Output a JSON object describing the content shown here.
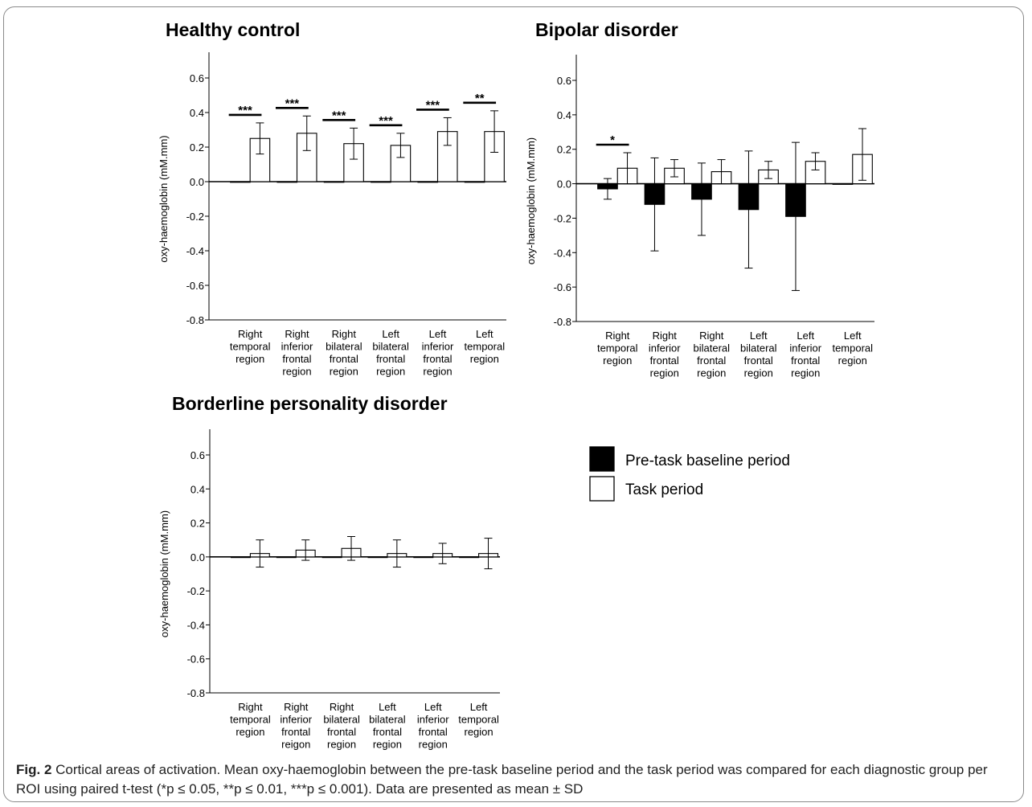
{
  "legend": {
    "entries": [
      {
        "label": "Pre-task baseline period",
        "color": "#000000"
      },
      {
        "label": "Task period",
        "color": "#ffffff"
      }
    ]
  },
  "caption": {
    "label": "Fig. 2",
    "text": "Cortical areas of activation. Mean oxy-haemoglobin between the pre-task baseline period and the task period was compared for each diagnostic group per ROI using paired t-test (*p ≤ 0.05, **p ≤ 0.01, ***p ≤ 0.001). Data are presented as mean ± SD"
  },
  "chart_data": [
    {
      "type": "bar",
      "title": "Healthy control",
      "ylabel": "oxy-haemoglobin (mM.mm)",
      "ylim": [
        -0.8,
        0.7
      ],
      "yticks": [
        "0.6",
        "0.4",
        "0.2",
        "0.0",
        "-0.2",
        "-0.4",
        "-0.6",
        "-0.8"
      ],
      "categories": [
        [
          "Right",
          "temporal",
          "region"
        ],
        [
          "Right",
          "inferior",
          "frontal",
          "region"
        ],
        [
          "Right",
          "bilateral",
          "frontal",
          "region"
        ],
        [
          "Left",
          "bilateral",
          "frontal",
          "region"
        ],
        [
          "Left",
          "inferior",
          "frontal",
          "region"
        ],
        [
          "Left",
          "temporal",
          "region"
        ]
      ],
      "series": [
        {
          "name": "Pre-task baseline period",
          "values": [
            0.0,
            0.0,
            0.0,
            0.0,
            0.0,
            0.0
          ],
          "sd": [
            0,
            0,
            0,
            0,
            0,
            0
          ]
        },
        {
          "name": "Task period",
          "values": [
            0.25,
            0.28,
            0.22,
            0.21,
            0.29,
            0.29
          ],
          "sd": [
            0.09,
            0.1,
            0.09,
            0.07,
            0.08,
            0.12
          ]
        }
      ],
      "significance": [
        "***",
        "***",
        "***",
        "***",
        "***",
        "**"
      ]
    },
    {
      "type": "bar",
      "title": "Bipolar disorder",
      "ylabel": "oxy-haemoglobin (mM.mm)",
      "ylim": [
        -0.8,
        0.7
      ],
      "yticks": [
        "0.6",
        "0.4",
        "0.2",
        "0.0",
        "-0.2",
        "-0.4",
        "-0.6",
        "-0.8"
      ],
      "categories": [
        [
          "Right",
          "temporal",
          "region"
        ],
        [
          "Right",
          "inferior",
          "frontal",
          "region"
        ],
        [
          "Right",
          "bilateral",
          "frontal",
          "region"
        ],
        [
          "Left",
          "bilateral",
          "frontal",
          "region"
        ],
        [
          "Left",
          "inferior",
          "frontal",
          "region"
        ],
        [
          "Left",
          "temporal",
          "region"
        ]
      ],
      "series": [
        {
          "name": "Pre-task baseline period",
          "values": [
            -0.03,
            -0.12,
            -0.09,
            -0.15,
            -0.19,
            0.0
          ],
          "sd": [
            0.06,
            0.27,
            0.21,
            0.34,
            0.43,
            0
          ]
        },
        {
          "name": "Task period",
          "values": [
            0.09,
            0.09,
            0.07,
            0.08,
            0.13,
            0.17
          ],
          "sd": [
            0.09,
            0.05,
            0.07,
            0.05,
            0.05,
            0.15
          ]
        }
      ],
      "significance": [
        "*",
        "",
        "",
        "",
        "",
        ""
      ]
    },
    {
      "type": "bar",
      "title": "Borderline personality disorder",
      "ylabel": "oxy-haemoglobin (mM.mm)",
      "ylim": [
        -0.8,
        0.7
      ],
      "yticks": [
        "0.6",
        "0.4",
        "0.2",
        "0.0",
        "-0.2",
        "-0.4",
        "-0.6",
        "-0.8"
      ],
      "categories": [
        [
          "Right",
          "temporal",
          "region"
        ],
        [
          "Right",
          "inferior",
          "frontal",
          "reigon"
        ],
        [
          "Right",
          "bilateral",
          "frontal",
          "region"
        ],
        [
          "Left",
          "bilateral",
          "frontal",
          "region"
        ],
        [
          "Left",
          "inferior",
          "frontal",
          "region"
        ],
        [
          "Left",
          "temporal",
          "region"
        ]
      ],
      "series": [
        {
          "name": "Pre-task baseline period",
          "values": [
            0.0,
            0.0,
            0.0,
            0.0,
            0.0,
            0.0
          ],
          "sd": [
            0,
            0,
            0,
            0,
            0,
            0
          ]
        },
        {
          "name": "Task period",
          "values": [
            0.02,
            0.04,
            0.05,
            0.02,
            0.02,
            0.02
          ],
          "sd": [
            0.08,
            0.06,
            0.07,
            0.08,
            0.06,
            0.09
          ]
        }
      ],
      "significance": [
        "",
        "",
        "",
        "",
        "",
        ""
      ]
    }
  ]
}
